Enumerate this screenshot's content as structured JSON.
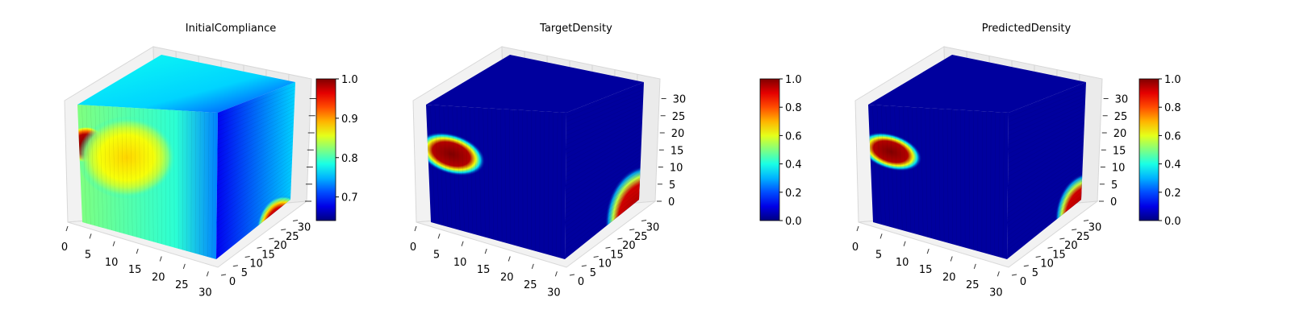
{
  "colormap": "jet",
  "chart_data": [
    {
      "type": "heatmap",
      "subtype": "3d-voxel-cube",
      "title": "InitialCompliance",
      "x_ticks": [
        "0",
        "5",
        "10",
        "15",
        "20",
        "25",
        "30"
      ],
      "y_ticks": [
        "0",
        "5",
        "10",
        "15",
        "20",
        "25",
        "30"
      ],
      "z_ticks": [],
      "xlim": [
        0,
        32
      ],
      "ylim": [
        0,
        32
      ],
      "zlim": [
        0,
        32
      ],
      "grid": true,
      "colorbar": {
        "range": [
          0.64,
          1.0
        ],
        "ticks": [
          "0.7",
          "0.8",
          "0.9",
          "1.0"
        ],
        "tick_values": [
          0.7,
          0.8,
          0.9,
          1.0
        ]
      },
      "faces": {
        "front_base": 0.79,
        "top_base": 0.76,
        "side_base": 0.72,
        "front_hotspots": [
          {
            "u": 0.06,
            "v": 0.66,
            "r": 0.16,
            "value": 1.0
          },
          {
            "u": 0.35,
            "v": 0.55,
            "r": 0.35,
            "value": 0.88
          }
        ],
        "side_hotspots": [
          {
            "u": 0.85,
            "v": 0.15,
            "r": 0.35,
            "value": 1.0
          }
        ]
      }
    },
    {
      "type": "heatmap",
      "subtype": "3d-voxel-cube",
      "title": "TargetDensity",
      "x_ticks": [
        "0",
        "5",
        "10",
        "15",
        "20",
        "25",
        "30"
      ],
      "y_ticks": [
        "0",
        "5",
        "10",
        "15",
        "20",
        "25",
        "30"
      ],
      "z_ticks": [
        "0",
        "5",
        "10",
        "15",
        "20",
        "25",
        "30"
      ],
      "xlim": [
        0,
        32
      ],
      "ylim": [
        0,
        32
      ],
      "zlim": [
        0,
        32
      ],
      "grid": true,
      "colorbar": {
        "range": [
          0.0,
          1.0
        ],
        "ticks": [
          "0.0",
          "0.2",
          "0.4",
          "0.6",
          "0.8",
          "1.0"
        ],
        "tick_values": [
          0.0,
          0.2,
          0.4,
          0.6,
          0.8,
          1.0
        ]
      },
      "faces": {
        "front_base": 0.03,
        "top_base": 0.03,
        "side_base": 0.03,
        "front_hotspots": [
          {
            "u": 0.18,
            "v": 0.58,
            "rx": 0.25,
            "ry": 0.17,
            "value": 1.0
          }
        ],
        "side_hotspots": [
          {
            "u": 1.05,
            "v": 0.2,
            "r": 0.55,
            "value": 1.0
          }
        ]
      }
    },
    {
      "type": "heatmap",
      "subtype": "3d-voxel-cube",
      "title": "PredictedDensity",
      "x_ticks": [
        "0",
        "5",
        "10",
        "15",
        "20",
        "25",
        "30"
      ],
      "y_ticks": [
        "0",
        "5",
        "10",
        "15",
        "20",
        "25",
        "30"
      ],
      "z_ticks": [
        "0",
        "5",
        "10",
        "15",
        "20",
        "25",
        "30"
      ],
      "xlim": [
        0,
        32
      ],
      "ylim": [
        0,
        32
      ],
      "zlim": [
        0,
        32
      ],
      "grid": true,
      "colorbar": {
        "range": [
          0.0,
          1.0
        ],
        "ticks": [
          "0.0",
          "0.2",
          "0.4",
          "0.6",
          "0.8",
          "1.0"
        ],
        "tick_values": [
          0.0,
          0.2,
          0.4,
          0.6,
          0.8,
          1.0
        ]
      },
      "faces": {
        "front_base": 0.03,
        "top_base": 0.03,
        "side_base": 0.03,
        "front_hotspots": [
          {
            "u": 0.16,
            "v": 0.6,
            "rx": 0.23,
            "ry": 0.15,
            "value": 1.0
          }
        ],
        "side_hotspots": [
          {
            "u": 1.05,
            "v": 0.22,
            "r": 0.45,
            "value": 1.0
          }
        ]
      }
    }
  ]
}
